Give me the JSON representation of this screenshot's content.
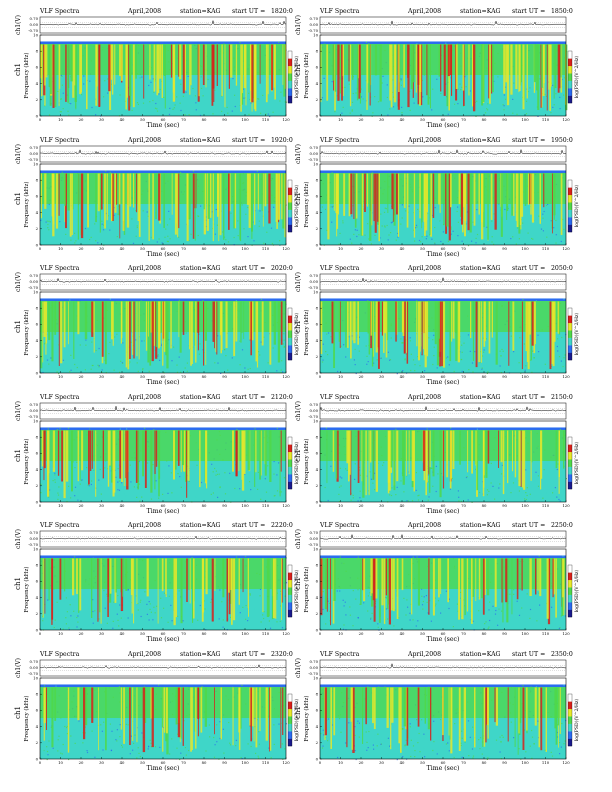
{
  "page": {
    "spectra_label": "VLF Spectra",
    "date": "April,2008",
    "station_label": "station=KAG",
    "start_prefix": "start UT =",
    "ch_label": "ch1(V)",
    "channel_label": "ch1",
    "freq_label": "Frequency (kHz)",
    "xlabel": "Time (sec)",
    "colorbar_label": "log(PSD)(V^2/Hz)",
    "ch_ticks": [
      "0.70",
      "0.00",
      "-0.70"
    ],
    "x_ticks": [
      "0",
      "10",
      "20",
      "30",
      "40",
      "50",
      "60",
      "70",
      "80",
      "90",
      "100",
      "110",
      "120"
    ],
    "y_ticks": [
      "0",
      "2",
      "4",
      "6",
      "8",
      "10"
    ]
  },
  "chart_data": [
    {
      "type": "heatmap",
      "panel": "1",
      "start_ut": "1820:0",
      "xlim": [
        0,
        120
      ],
      "ylim": [
        0,
        10
      ],
      "xlabel": "Time (sec)",
      "ylabel": "Frequency (kHz)",
      "band_khz": [
        0,
        9.2
      ]
    },
    {
      "type": "heatmap",
      "panel": "2",
      "start_ut": "1850:0",
      "xlim": [
        0,
        120
      ],
      "ylim": [
        0,
        10
      ],
      "xlabel": "Time (sec)",
      "ylabel": "Frequency (kHz)",
      "band_khz": [
        0,
        9.2
      ]
    },
    {
      "type": "heatmap",
      "panel": "3",
      "start_ut": "1920:0",
      "xlim": [
        0,
        120
      ],
      "ylim": [
        0,
        10
      ],
      "xlabel": "Time (sec)",
      "ylabel": "Frequency (kHz)",
      "band_khz": [
        0,
        9.2
      ]
    },
    {
      "type": "heatmap",
      "panel": "4",
      "start_ut": "1950:0",
      "xlim": [
        0,
        120
      ],
      "ylim": [
        0,
        10
      ],
      "xlabel": "Time (sec)",
      "ylabel": "Frequency (kHz)",
      "band_khz": [
        0,
        9.2
      ]
    },
    {
      "type": "heatmap",
      "panel": "5",
      "start_ut": "2020:0",
      "xlim": [
        0,
        120
      ],
      "ylim": [
        0,
        10
      ],
      "xlabel": "Time (sec)",
      "ylabel": "Frequency (kHz)",
      "band_khz": [
        0,
        9.2
      ]
    },
    {
      "type": "heatmap",
      "panel": "6",
      "start_ut": "2050:0",
      "xlim": [
        0,
        120
      ],
      "ylim": [
        0,
        10
      ],
      "xlabel": "Time (sec)",
      "ylabel": "Frequency (kHz)",
      "band_khz": [
        0,
        9.2
      ]
    },
    {
      "type": "heatmap",
      "panel": "7",
      "start_ut": "2120:0",
      "xlim": [
        0,
        120
      ],
      "ylim": [
        0,
        10
      ],
      "xlabel": "Time (sec)",
      "ylabel": "Frequency (kHz)",
      "band_khz": [
        0,
        9.2
      ]
    },
    {
      "type": "heatmap",
      "panel": "8",
      "start_ut": "2150:0",
      "xlim": [
        0,
        120
      ],
      "ylim": [
        0,
        10
      ],
      "xlabel": "Time (sec)",
      "ylabel": "Frequency (kHz)",
      "band_khz": [
        0,
        9.2
      ]
    },
    {
      "type": "heatmap",
      "panel": "9",
      "start_ut": "2220:0",
      "xlim": [
        0,
        120
      ],
      "ylim": [
        0,
        10
      ],
      "xlabel": "Time (sec)",
      "ylabel": "Frequency (kHz)",
      "band_khz": [
        0,
        9.2
      ]
    },
    {
      "type": "heatmap",
      "panel": "10",
      "start_ut": "2250:0",
      "xlim": [
        0,
        120
      ],
      "ylim": [
        0,
        10
      ],
      "xlabel": "Time (sec)",
      "ylabel": "Frequency (kHz)",
      "band_khz": [
        0,
        9.2
      ]
    },
    {
      "type": "heatmap",
      "panel": "11",
      "start_ut": "2320:0",
      "xlim": [
        0,
        120
      ],
      "ylim": [
        0,
        10
      ],
      "xlabel": "Time (sec)",
      "ylabel": "Frequency (kHz)",
      "band_khz": [
        0,
        9.2
      ]
    },
    {
      "type": "heatmap",
      "panel": "12",
      "start_ut": "2350:0",
      "xlim": [
        0,
        120
      ],
      "ylim": [
        0,
        10
      ],
      "xlabel": "Time (sec)",
      "ylabel": "Frequency (kHz)",
      "band_khz": [
        0,
        9.2
      ]
    }
  ],
  "colors": {
    "background_cyan": "#3fd6c8",
    "low_blue": "#2b6bf0",
    "mid_green": "#4fd84a",
    "high_yellow": "#e8e82a",
    "peak_red": "#d8201a",
    "colorbar": [
      "#1a1a8c",
      "#2b6bf0",
      "#3fd6c8",
      "#4fd84a",
      "#e8e82a",
      "#d8201a",
      "#ffffff"
    ]
  }
}
